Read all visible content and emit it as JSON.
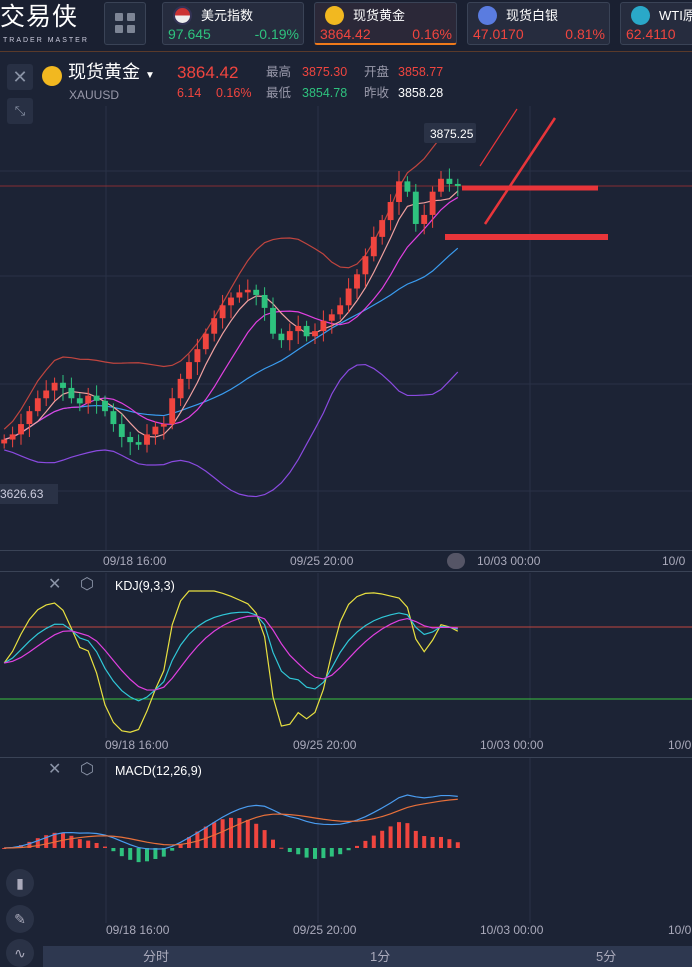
{
  "app": {
    "logo": "交易侠",
    "logo_sub": "TRADER MASTER"
  },
  "tickers": [
    {
      "name": "美元指数",
      "price": "97.645",
      "change": "-0.19%",
      "dir": "dn",
      "icon": "us-flag-icon"
    },
    {
      "name": "现货黄金",
      "price": "3864.42",
      "change": "0.16%",
      "dir": "up",
      "icon": "gold-icon",
      "active": true
    },
    {
      "name": "现货白银",
      "price": "47.0170",
      "change": "0.81%",
      "dir": "up",
      "icon": "silver-icon"
    },
    {
      "name": "WTI原",
      "price": "62.4110",
      "change": "",
      "dir": "up",
      "icon": "oil-icon"
    }
  ],
  "quote": {
    "name": "现货黄金",
    "code": "XAUUSD",
    "price": "3864.42",
    "change": "6.14",
    "change_pct": "0.16%",
    "high_label": "最高",
    "high": "3875.30",
    "low_label": "最低",
    "low": "3854.78",
    "open_label": "开盘",
    "open": "3858.77",
    "prev_label": "昨收",
    "prev": "3858.28"
  },
  "chart": {
    "max_label": "3875.25",
    "min_label": "3626.63",
    "time_labels": [
      "09/18 16:00",
      "09/25 20:00",
      "10/03 00:00",
      "10/0"
    ]
  },
  "kdj": {
    "label": "KDJ(9,3,3)"
  },
  "macd": {
    "label": "MACD(12,26,9)"
  },
  "periods": [
    "分时",
    "1分",
    "5分"
  ],
  "colors": {
    "up": "#f0453f",
    "down": "#2ec27e",
    "ma5": "#f0a0a0",
    "ma10": "#e040e0",
    "ma20": "#3a9cf0"
  },
  "chart_data": {
    "type": "candlestick",
    "closes": [
      3668,
      3672,
      3680,
      3690,
      3700,
      3706,
      3712,
      3708,
      3700,
      3696,
      3702,
      3698,
      3690,
      3680,
      3670,
      3666,
      3664,
      3672,
      3678,
      3680,
      3700,
      3715,
      3728,
      3738,
      3750,
      3762,
      3772,
      3778,
      3782,
      3784,
      3780,
      3770,
      3750,
      3745,
      3752,
      3756,
      3748,
      3752,
      3760,
      3765,
      3772,
      3785,
      3796,
      3810,
      3825,
      3838,
      3852,
      3868,
      3860,
      3835,
      3842,
      3860,
      3870,
      3866,
      3864.42
    ]
  }
}
